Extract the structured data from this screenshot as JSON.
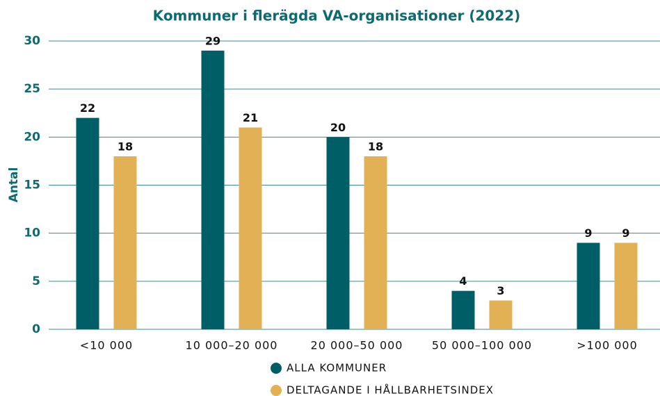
{
  "chart_data": {
    "type": "bar",
    "title": "Kommuner i flerägda VA-organisationer (2022)",
    "y_label": "Antal",
    "categories": [
      "<10 000",
      "10 000–20 000",
      "20 000–50 000",
      "50 000–100 000",
      ">100 000"
    ],
    "series": [
      {
        "name": "ALLA KOMMUNER",
        "color": "#005f66",
        "values": [
          22,
          29,
          20,
          4,
          9
        ]
      },
      {
        "name": "DELTAGANDE I HÅLLBARHETSINDEX",
        "color": "#e2b155",
        "values": [
          18,
          21,
          18,
          3,
          9
        ]
      }
    ],
    "ylim": [
      0,
      30
    ],
    "yticks": [
      0,
      5,
      10,
      15,
      20,
      25,
      30
    ],
    "grid": true
  }
}
